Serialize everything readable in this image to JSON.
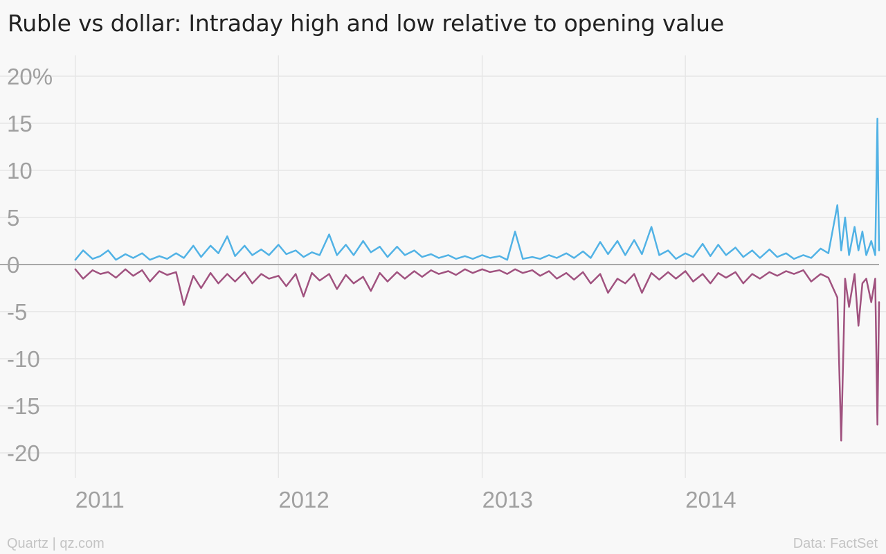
{
  "colors": {
    "background": "#f8f8f8",
    "grid": "#e6e6e6",
    "zero_line": "#a8a8a8",
    "high_series": "#51b2e5",
    "low_series": "#a0527f",
    "tick_text": "#a0a0a0",
    "footer_text": "#c4c4c4"
  },
  "footer": {
    "source_left": "Quartz | qz.com",
    "source_right": "Data: FactSet"
  },
  "chart_data": {
    "type": "line",
    "title": "Ruble vs dollar: Intraday high and low relative to opening value",
    "xlabel": "",
    "ylabel": "",
    "ylim": [
      -23,
      22
    ],
    "xlim": [
      "2010-12-31",
      "2014-12-15"
    ],
    "x_ticks": [
      {
        "date": "2011-01-01",
        "label": "2011"
      },
      {
        "date": "2012-01-01",
        "label": "2012"
      },
      {
        "date": "2013-01-01",
        "label": "2013"
      },
      {
        "date": "2014-01-01",
        "label": "2014"
      }
    ],
    "y_ticks": [
      {
        "value": 20,
        "label": "20%"
      },
      {
        "value": 15,
        "label": "15"
      },
      {
        "value": 10,
        "label": "10"
      },
      {
        "value": 5,
        "label": "5"
      },
      {
        "value": 0,
        "label": "0"
      },
      {
        "value": -5,
        "label": "-5"
      },
      {
        "value": -10,
        "label": "-10"
      },
      {
        "value": -15,
        "label": "-15"
      },
      {
        "value": -20,
        "label": "-20"
      }
    ],
    "grid": true,
    "baseline_line_at": 0,
    "legend": "none",
    "series": [
      {
        "key": "high",
        "color": "#51b2e5",
        "x": [
          "2011-01-01",
          "2011-01-15",
          "2011-02-01",
          "2011-02-15",
          "2011-03-01",
          "2011-03-15",
          "2011-04-01",
          "2011-04-15",
          "2011-05-01",
          "2011-05-15",
          "2011-06-01",
          "2011-06-15",
          "2011-07-01",
          "2011-07-15",
          "2011-08-01",
          "2011-08-15",
          "2011-09-01",
          "2011-09-15",
          "2011-10-01",
          "2011-10-15",
          "2011-11-01",
          "2011-11-15",
          "2011-12-01",
          "2011-12-15",
          "2012-01-01",
          "2012-01-15",
          "2012-02-01",
          "2012-02-15",
          "2012-03-01",
          "2012-03-15",
          "2012-04-01",
          "2012-04-15",
          "2012-05-01",
          "2012-05-15",
          "2012-06-01",
          "2012-06-15",
          "2012-07-01",
          "2012-07-15",
          "2012-08-01",
          "2012-08-15",
          "2012-09-01",
          "2012-09-15",
          "2012-10-01",
          "2012-10-15",
          "2012-11-01",
          "2012-11-15",
          "2012-12-01",
          "2012-12-15",
          "2013-01-01",
          "2013-01-15",
          "2013-02-01",
          "2013-02-15",
          "2013-03-01",
          "2013-03-15",
          "2013-04-01",
          "2013-04-15",
          "2013-05-01",
          "2013-05-15",
          "2013-06-01",
          "2013-06-15",
          "2013-07-01",
          "2013-07-15",
          "2013-08-01",
          "2013-08-15",
          "2013-09-01",
          "2013-09-15",
          "2013-10-01",
          "2013-10-15",
          "2013-11-01",
          "2013-11-15",
          "2013-12-01",
          "2013-12-15",
          "2014-01-01",
          "2014-01-15",
          "2014-02-01",
          "2014-02-15",
          "2014-03-01",
          "2014-03-15",
          "2014-04-01",
          "2014-04-15",
          "2014-05-01",
          "2014-05-15",
          "2014-06-01",
          "2014-06-15",
          "2014-07-01",
          "2014-07-15",
          "2014-08-01",
          "2014-08-15",
          "2014-09-01",
          "2014-09-15",
          "2014-10-01",
          "2014-10-08",
          "2014-10-15",
          "2014-10-22",
          "2014-11-01",
          "2014-11-08",
          "2014-11-15",
          "2014-11-22",
          "2014-12-01",
          "2014-12-08",
          "2014-12-12",
          "2014-12-15"
        ],
        "values": [
          0.5,
          1.5,
          0.6,
          0.9,
          1.5,
          0.5,
          1.1,
          0.7,
          1.2,
          0.5,
          0.9,
          0.6,
          1.2,
          0.7,
          2.0,
          0.8,
          2.0,
          1.2,
          3.0,
          0.9,
          2.0,
          1.0,
          1.6,
          1.0,
          2.1,
          1.1,
          1.5,
          0.8,
          1.3,
          1.0,
          3.2,
          1.0,
          2.1,
          1.0,
          2.5,
          1.3,
          1.9,
          0.8,
          1.9,
          1.0,
          1.5,
          0.8,
          1.1,
          0.7,
          1.0,
          0.6,
          0.9,
          0.6,
          1.0,
          0.7,
          0.9,
          0.5,
          3.5,
          0.6,
          0.8,
          0.6,
          1.0,
          0.7,
          1.2,
          0.7,
          1.4,
          0.7,
          2.4,
          1.1,
          2.5,
          1.0,
          2.6,
          1.1,
          4.0,
          1.0,
          1.5,
          0.6,
          1.2,
          0.8,
          2.2,
          0.9,
          2.1,
          1.0,
          1.8,
          0.8,
          1.5,
          0.7,
          1.6,
          0.8,
          1.2,
          0.6,
          1.0,
          0.7,
          1.7,
          1.2,
          6.3,
          1.5,
          5.0,
          1.0,
          4.0,
          1.5,
          3.5,
          1.0,
          2.5,
          1.0,
          15.5,
          1.5
        ]
      },
      {
        "key": "low",
        "color": "#a0527f",
        "x": [
          "2011-01-01",
          "2011-01-15",
          "2011-02-01",
          "2011-02-15",
          "2011-03-01",
          "2011-03-15",
          "2011-04-01",
          "2011-04-15",
          "2011-05-01",
          "2011-05-15",
          "2011-06-01",
          "2011-06-15",
          "2011-07-01",
          "2011-07-15",
          "2011-08-01",
          "2011-08-15",
          "2011-09-01",
          "2011-09-15",
          "2011-10-01",
          "2011-10-15",
          "2011-11-01",
          "2011-11-15",
          "2011-12-01",
          "2011-12-15",
          "2012-01-01",
          "2012-01-15",
          "2012-02-01",
          "2012-02-15",
          "2012-03-01",
          "2012-03-15",
          "2012-04-01",
          "2012-04-15",
          "2012-05-01",
          "2012-05-15",
          "2012-06-01",
          "2012-06-15",
          "2012-07-01",
          "2012-07-15",
          "2012-08-01",
          "2012-08-15",
          "2012-09-01",
          "2012-09-15",
          "2012-10-01",
          "2012-10-15",
          "2012-11-01",
          "2012-11-15",
          "2012-12-01",
          "2012-12-15",
          "2013-01-01",
          "2013-01-15",
          "2013-02-01",
          "2013-02-15",
          "2013-03-01",
          "2013-03-15",
          "2013-04-01",
          "2013-04-15",
          "2013-05-01",
          "2013-05-15",
          "2013-06-01",
          "2013-06-15",
          "2013-07-01",
          "2013-07-15",
          "2013-08-01",
          "2013-08-15",
          "2013-09-01",
          "2013-09-15",
          "2013-10-01",
          "2013-10-15",
          "2013-11-01",
          "2013-11-15",
          "2013-12-01",
          "2013-12-15",
          "2014-01-01",
          "2014-01-15",
          "2014-02-01",
          "2014-02-15",
          "2014-03-01",
          "2014-03-15",
          "2014-04-01",
          "2014-04-15",
          "2014-05-01",
          "2014-05-15",
          "2014-06-01",
          "2014-06-15",
          "2014-07-01",
          "2014-07-15",
          "2014-08-01",
          "2014-08-15",
          "2014-09-01",
          "2014-09-15",
          "2014-10-01",
          "2014-10-08",
          "2014-10-15",
          "2014-10-22",
          "2014-11-01",
          "2014-11-08",
          "2014-11-15",
          "2014-11-22",
          "2014-12-01",
          "2014-12-08",
          "2014-12-12",
          "2014-12-15"
        ],
        "values": [
          -0.5,
          -1.5,
          -0.6,
          -1.0,
          -0.8,
          -1.4,
          -0.5,
          -1.2,
          -0.6,
          -1.8,
          -0.7,
          -1.1,
          -0.8,
          -4.3,
          -1.2,
          -2.5,
          -0.9,
          -2.0,
          -1.0,
          -1.8,
          -0.8,
          -2.0,
          -1.0,
          -1.5,
          -1.2,
          -2.3,
          -1.0,
          -3.4,
          -0.9,
          -1.7,
          -1.0,
          -2.6,
          -1.1,
          -2.0,
          -1.3,
          -2.8,
          -0.9,
          -1.8,
          -0.8,
          -1.5,
          -0.7,
          -1.3,
          -0.6,
          -1.0,
          -0.7,
          -1.1,
          -0.5,
          -0.9,
          -0.5,
          -0.8,
          -0.6,
          -1.0,
          -0.5,
          -0.9,
          -0.6,
          -1.2,
          -0.7,
          -1.5,
          -0.9,
          -1.6,
          -0.8,
          -2.0,
          -1.0,
          -3.0,
          -1.5,
          -2.0,
          -1.0,
          -3.0,
          -0.9,
          -1.6,
          -0.8,
          -1.5,
          -0.7,
          -1.8,
          -1.0,
          -2.0,
          -0.9,
          -1.4,
          -0.8,
          -2.0,
          -1.0,
          -1.5,
          -0.8,
          -1.2,
          -0.7,
          -1.0,
          -0.6,
          -1.8,
          -1.0,
          -1.4,
          -3.5,
          -18.7,
          -1.5,
          -4.5,
          -1.0,
          -6.5,
          -2.0,
          -1.5,
          -4.0,
          -1.5,
          -17.0,
          -4.0
        ]
      }
    ]
  }
}
